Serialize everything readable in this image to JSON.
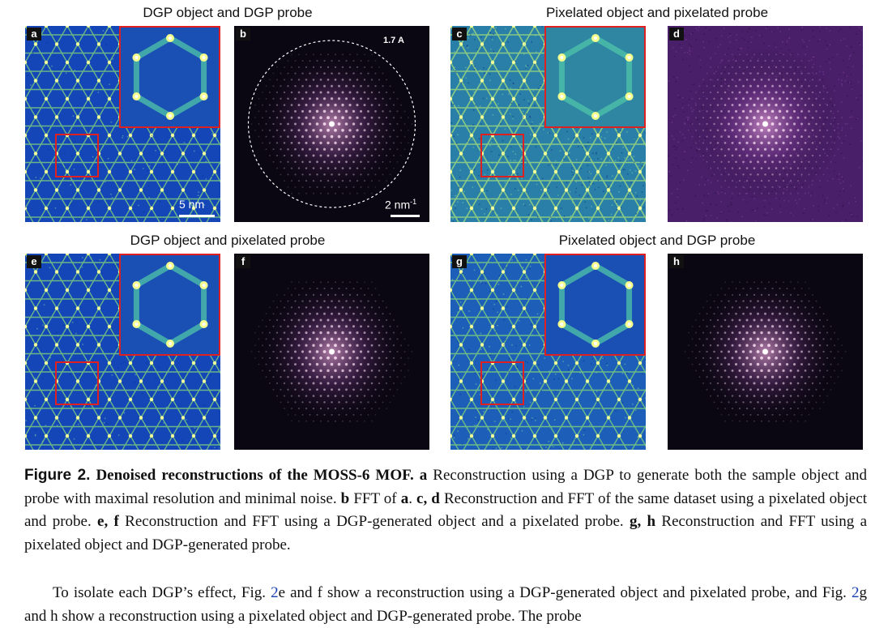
{
  "groups": [
    {
      "title": "DGP object and DGP probe"
    },
    {
      "title": "Pixelated object and pixelated probe"
    },
    {
      "title": "DGP object and pixelated probe"
    },
    {
      "title": "Pixelated object and DGP probe"
    }
  ],
  "panels": {
    "a": {
      "letter": "a",
      "scalebar": "5 nm"
    },
    "b": {
      "letter": "b",
      "resolution": "1.7 A",
      "scalebar_base": "2 nm",
      "scalebar_exp": "-1"
    },
    "c": {
      "letter": "c"
    },
    "d": {
      "letter": "d"
    },
    "e": {
      "letter": "e"
    },
    "f": {
      "letter": "f"
    },
    "g": {
      "letter": "g"
    },
    "h": {
      "letter": "h"
    }
  },
  "caption": {
    "label": "Figure 2.",
    "title": "Denoised reconstructions of the MOSS-6 MOF.",
    "parts": {
      "a_label": "a",
      "a_text": "Reconstruction using a DGP to generate both the sample object and probe with maximal resolution and minimal noise.",
      "b_label": "b",
      "b_text": "FFT of",
      "b_ref": "a",
      "cd_label": "c, d",
      "cd_text": "Reconstruction and FFT of the same dataset using a pixelated object and probe.",
      "ef_label": "e, f",
      "ef_text": "Reconstruction and FFT using a DGP-generated object and a pixelated probe.",
      "gh_label": "g, h",
      "gh_text": "Reconstruction and FFT using a pixelated object and DGP-generated probe."
    }
  },
  "body": {
    "t1": "To isolate each DGP’s effect, Fig.",
    "ref1": "2",
    "t2": "e and f show a reconstruction using a DGP-generated object and pixelated probe, and Fig.",
    "ref2": "2",
    "t3": "g and h show a reconstruction using a pixelated object and DGP-generated probe.  The probe"
  }
}
